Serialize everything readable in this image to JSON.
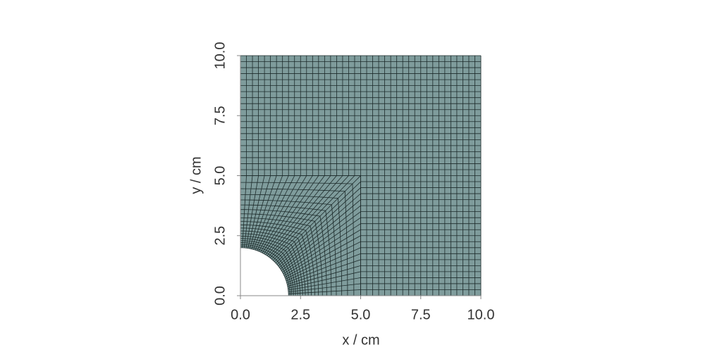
{
  "chart_data": {
    "type": "mesh",
    "xlabel": "x / cm",
    "ylabel": "y / cm",
    "xlim": [
      0,
      10
    ],
    "ylim": [
      0,
      10
    ],
    "xticks": [
      {
        "value": 0,
        "label": "0.0"
      },
      2.5,
      {
        "value": 5,
        "label": "5.0"
      },
      7.5,
      {
        "value": 10,
        "label": "10.0"
      }
    ],
    "yticks": [
      {
        "value": 0,
        "label": "0.0"
      },
      2.5,
      {
        "value": 5,
        "label": "5.0"
      },
      7.5,
      {
        "value": 10,
        "label": "10.0"
      }
    ],
    "mesh": {
      "hole_radius": 2,
      "block_size": 5,
      "cell_size": 0.25,
      "radial_cells": 20
    },
    "color": "#7f9c9c",
    "line_color": "#1d2b2b"
  }
}
